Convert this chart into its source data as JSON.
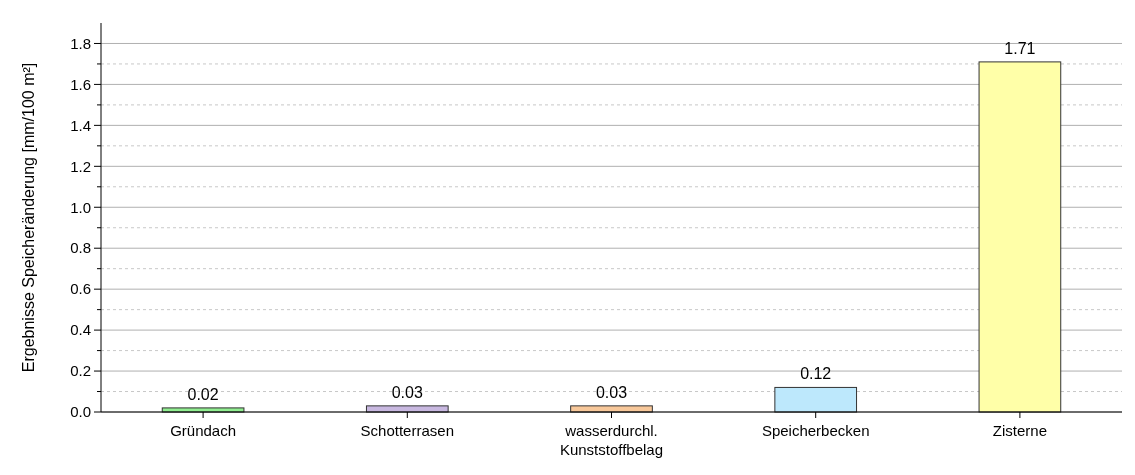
{
  "chart_data": {
    "type": "bar",
    "ylabel": "Ergebnisse Speicheränderung [mm/100 m²]",
    "categories": [
      "Gründach",
      "Schotterrasen",
      "wasserdurchl. Kunststoffbelag",
      "Speicherbecken",
      "Zisterne"
    ],
    "values": [
      0.02,
      0.03,
      0.03,
      0.12,
      1.71
    ],
    "colors": [
      "#90ee90",
      "#c8b8e0",
      "#f8c89a",
      "#bde8fc",
      "#ffffa8"
    ],
    "data_labels": true,
    "ylim": [
      0,
      1.9
    ],
    "yticks": [
      "0.0",
      {
        "value": 0.1,
        "label": null
      },
      "0.2",
      {
        "value": 0.3,
        "label": null
      },
      "0.4",
      {
        "value": 0.5,
        "label": null
      },
      "0.6",
      {
        "value": 0.7,
        "label": null
      },
      "0.8",
      {
        "value": 0.9,
        "label": null
      },
      "1.0",
      {
        "value": 1.1,
        "label": null
      },
      "1.2",
      {
        "value": 1.3,
        "label": null
      },
      "1.4",
      {
        "value": 1.5,
        "label": null
      },
      "1.6",
      {
        "value": 1.7,
        "label": null
      },
      "1.8"
    ],
    "grid": true
  }
}
